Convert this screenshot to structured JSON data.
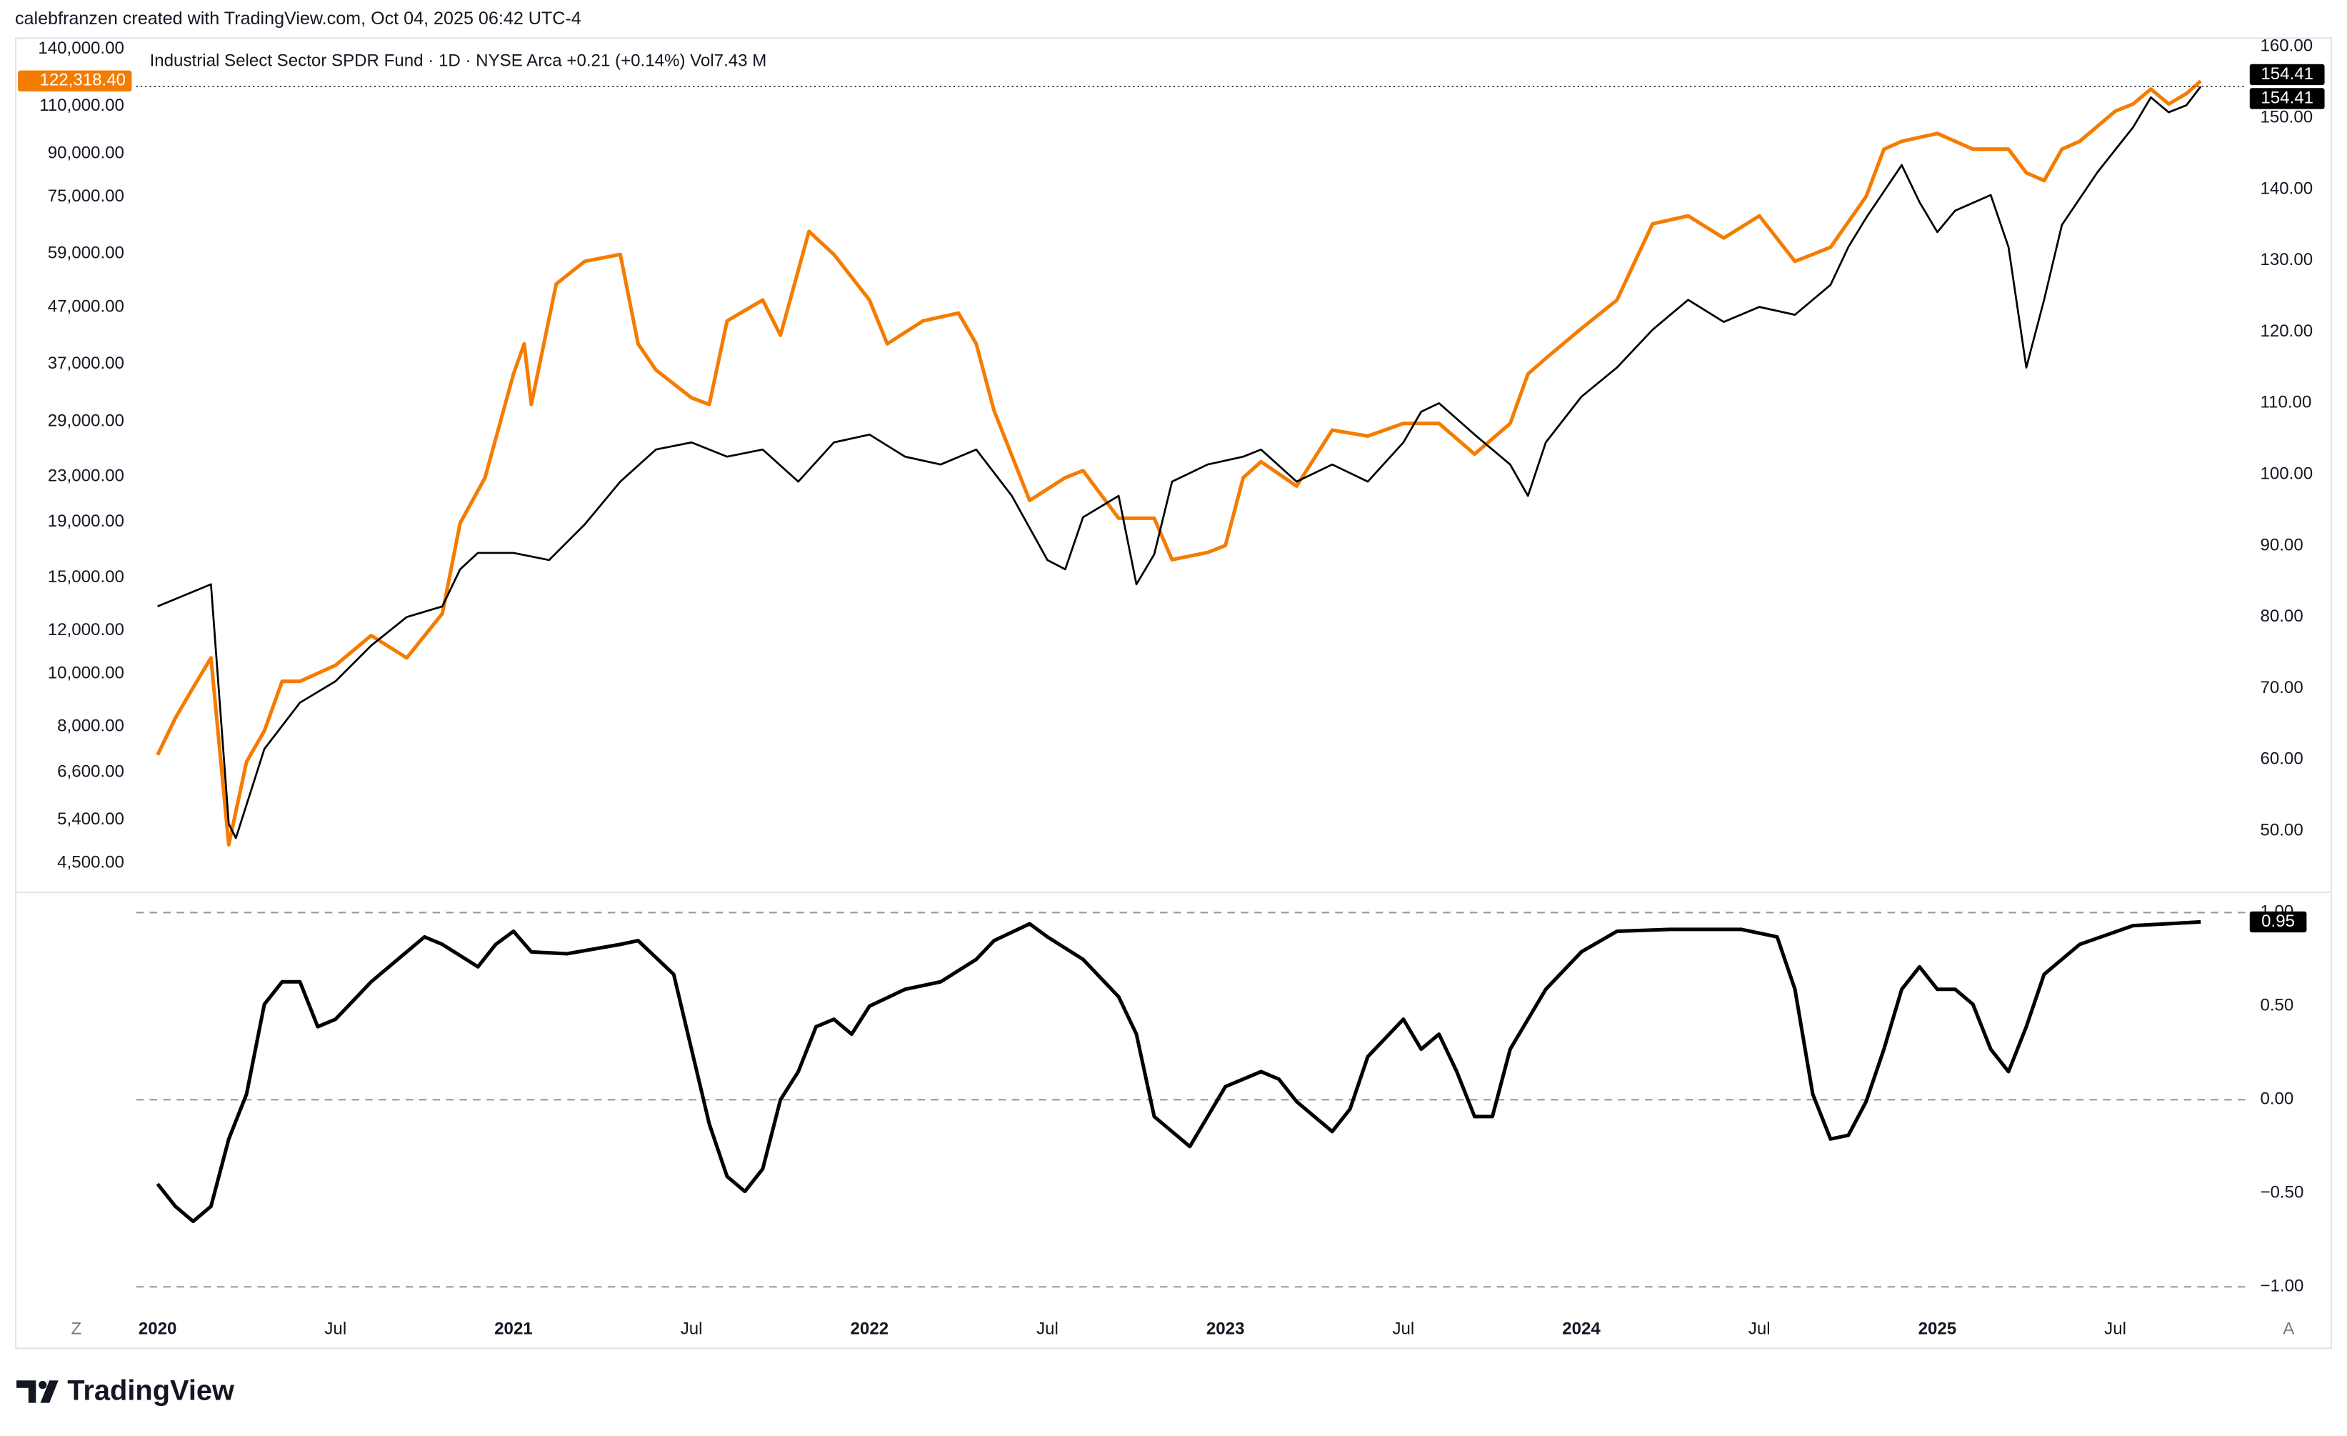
{
  "header": {
    "credit": "calebfranzen created with TradingView.com, Oct 04, 2025 06:42 UTC-4"
  },
  "footer": {
    "brand": "TradingView"
  },
  "controls": {
    "left": "Z",
    "right": "A"
  },
  "chart_data": [
    {
      "type": "line",
      "title": "Industrial Select Sector SPDR Fund · 1D · NYSE Arca  +0.21 (+0.14%)  Vol7.43 M",
      "xlim": [
        2019.94,
        2025.865
      ],
      "xticks": [
        {
          "value": 2020,
          "label": "2020"
        },
        {
          "value": 2020.5,
          "label": "Jul"
        },
        {
          "value": 2021,
          "label": "2021"
        },
        {
          "value": 2021.5,
          "label": "Jul"
        },
        {
          "value": 2022,
          "label": "2022"
        },
        {
          "value": 2022.5,
          "label": "Jul"
        },
        {
          "value": 2023,
          "label": "2023"
        },
        {
          "value": 2023.5,
          "label": "Jul"
        },
        {
          "value": 2024,
          "label": "2024"
        },
        {
          "value": 2024.5,
          "label": "Jul"
        },
        {
          "value": 2025,
          "label": "2025"
        },
        {
          "value": 2025.5,
          "label": "Jul"
        }
      ],
      "log": true,
      "ylim": [
        4000,
        147000
      ],
      "yticks": [
        {
          "value": 140000,
          "label": "140,000.00"
        },
        {
          "value": 110000,
          "label": "110,000.00"
        },
        {
          "value": 90000,
          "label": "90,000.00"
        },
        {
          "value": 75000,
          "label": "75,000.00"
        },
        {
          "value": 59000,
          "label": "59,000.00"
        },
        {
          "value": 47000,
          "label": "47,000.00"
        },
        {
          "value": 37000,
          "label": "37,000.00"
        },
        {
          "value": 29000,
          "label": "29,000.00"
        },
        {
          "value": 23000,
          "label": "23,000.00"
        },
        {
          "value": 19000,
          "label": "19,000.00"
        },
        {
          "value": 15000,
          "label": "15,000.00"
        },
        {
          "value": 12000,
          "label": "12,000.00"
        },
        {
          "value": 10000,
          "label": "10,000.00"
        },
        {
          "value": 8000,
          "label": "8,000.00"
        },
        {
          "value": 6600,
          "label": "6,600.00"
        },
        {
          "value": 5400,
          "label": "5,400.00"
        },
        {
          "value": 4500,
          "label": "4,500.00"
        }
      ],
      "y2lim": [
        41.6,
        161.3
      ],
      "y2ticks": [
        {
          "value": 160,
          "label": "160.00"
        },
        {
          "value": 150,
          "label": "150.00"
        },
        {
          "value": 140,
          "label": "140.00"
        },
        {
          "value": 130,
          "label": "130.00"
        },
        {
          "value": 120,
          "label": "120.00"
        },
        {
          "value": 110,
          "label": "110.00"
        },
        {
          "value": 100,
          "label": "100.00"
        },
        {
          "value": 90,
          "label": "90.00"
        },
        {
          "value": 80,
          "label": "80.00"
        },
        {
          "value": 70,
          "label": "70.00"
        },
        {
          "value": 60,
          "label": "60.00"
        },
        {
          "value": 50,
          "label": "50.00"
        }
      ],
      "series": [
        {
          "color": "#f57c00",
          "axis": "y",
          "last_label": "122,318.40",
          "x": [
            2020.0,
            2020.05,
            2020.1,
            2020.15,
            2020.2,
            2020.25,
            2020.3,
            2020.35,
            2020.4,
            2020.5,
            2020.6,
            2020.7,
            2020.8,
            2020.85,
            2020.92,
            2021.0,
            2021.03,
            2021.05,
            2021.12,
            2021.2,
            2021.3,
            2021.35,
            2021.4,
            2021.5,
            2021.55,
            2021.6,
            2021.7,
            2021.75,
            2021.83,
            2021.9,
            2022.0,
            2022.05,
            2022.15,
            2022.25,
            2022.3,
            2022.35,
            2022.45,
            2022.55,
            2022.6,
            2022.7,
            2022.8,
            2022.85,
            2022.95,
            2023.0,
            2023.05,
            2023.1,
            2023.2,
            2023.3,
            2023.4,
            2023.5,
            2023.6,
            2023.7,
            2023.8,
            2023.85,
            2023.9,
            2024.0,
            2024.1,
            2024.2,
            2024.3,
            2024.4,
            2024.5,
            2024.6,
            2024.7,
            2024.8,
            2024.85,
            2024.9,
            2025.0,
            2025.1,
            2025.2,
            2025.25,
            2025.3,
            2025.35,
            2025.4,
            2025.5,
            2025.55,
            2025.6,
            2025.65,
            2025.7,
            2025.74
          ],
          "values": [
            7100,
            8300,
            9440,
            10700,
            4860,
            6900,
            7860,
            9690,
            9690,
            10370,
            11760,
            10700,
            12900,
            18900,
            22900,
            35500,
            40300,
            31200,
            51900,
            57100,
            58800,
            40300,
            36100,
            32100,
            31200,
            44400,
            48500,
            41800,
            64800,
            58800,
            48500,
            40300,
            44400,
            45900,
            40300,
            30400,
            20800,
            22900,
            23600,
            19300,
            19300,
            16200,
            16700,
            17200,
            22900,
            24500,
            22100,
            28000,
            27300,
            28800,
            28800,
            25300,
            28800,
            35500,
            37900,
            43000,
            48500,
            66900,
            69200,
            63000,
            69200,
            57100,
            60600,
            75100,
            91700,
            94800,
            98000,
            91700,
            91700,
            83000,
            80300,
            91700,
            94800,
            107700,
            111000,
            118200,
            111000,
            116000,
            122318.4
          ]
        },
        {
          "color": "#000000",
          "axis": "y2",
          "x": [
            2020.0,
            2020.15,
            2020.2,
            2020.22,
            2020.3,
            2020.4,
            2020.5,
            2020.6,
            2020.7,
            2020.8,
            2020.85,
            2020.9,
            2021.0,
            2021.1,
            2021.2,
            2021.3,
            2021.4,
            2021.5,
            2021.6,
            2021.7,
            2021.8,
            2021.9,
            2022.0,
            2022.1,
            2022.2,
            2022.3,
            2022.4,
            2022.5,
            2022.55,
            2022.6,
            2022.7,
            2022.75,
            2022.8,
            2022.85,
            2022.95,
            2023.05,
            2023.1,
            2023.2,
            2023.3,
            2023.4,
            2023.5,
            2023.55,
            2023.6,
            2023.7,
            2023.8,
            2023.85,
            2023.9,
            2024.0,
            2024.1,
            2024.2,
            2024.3,
            2024.4,
            2024.5,
            2024.6,
            2024.7,
            2024.75,
            2024.8,
            2024.9,
            2024.95,
            2025.0,
            2025.05,
            2025.15,
            2025.2,
            2025.25,
            2025.3,
            2025.35,
            2025.45,
            2025.55,
            2025.6,
            2025.65,
            2025.7,
            2025.74
          ],
          "values": [
            81.5,
            84.6,
            51,
            49,
            61.5,
            68,
            71,
            76,
            80,
            81.5,
            86.7,
            89,
            89,
            88,
            93,
            99,
            103.5,
            104.5,
            102.5,
            103.5,
            99,
            104.5,
            105.6,
            102.5,
            101.4,
            103.5,
            97,
            88,
            86.7,
            94,
            97,
            84.6,
            88.8,
            99,
            101.4,
            102.5,
            103.5,
            99,
            101.4,
            99,
            104.5,
            108.8,
            110,
            105.6,
            101.4,
            97,
            104.5,
            110.9,
            115,
            120.3,
            124.5,
            121.4,
            123.5,
            122.4,
            126.6,
            131.9,
            136,
            143.4,
            138.2,
            134,
            137,
            139.2,
            131.9,
            115,
            124.5,
            135,
            142.4,
            148.7,
            152.9,
            150.8,
            151.8,
            154.41
          ]
        }
      ]
    },
    {
      "type": "line",
      "ylim": [
        -1.1,
        1.1
      ],
      "yticks": [
        {
          "value": 1,
          "label": "1.00"
        },
        {
          "value": 0.5,
          "label": "0.50"
        },
        {
          "value": 0,
          "label": "0.00"
        },
        {
          "value": -0.5,
          "label": "−0.50"
        },
        {
          "value": -1,
          "label": "−1.00"
        }
      ],
      "hlines": [
        1,
        0,
        -1
      ],
      "series": [
        {
          "color": "#000000",
          "x": [
            2020.0,
            2020.05,
            2020.1,
            2020.15,
            2020.2,
            2020.25,
            2020.3,
            2020.35,
            2020.4,
            2020.45,
            2020.5,
            2020.6,
            2020.7,
            2020.75,
            2020.8,
            2020.9,
            2020.95,
            2021.0,
            2021.05,
            2021.15,
            2021.3,
            2021.35,
            2021.45,
            2021.5,
            2021.55,
            2021.6,
            2021.65,
            2021.7,
            2021.75,
            2021.8,
            2021.85,
            2021.9,
            2021.95,
            2022.0,
            2022.1,
            2022.2,
            2022.3,
            2022.35,
            2022.45,
            2022.5,
            2022.6,
            2022.7,
            2022.75,
            2022.8,
            2022.9,
            2022.95,
            2023.0,
            2023.1,
            2023.15,
            2023.2,
            2023.3,
            2023.35,
            2023.4,
            2023.5,
            2023.55,
            2023.6,
            2023.65,
            2023.7,
            2023.75,
            2023.8,
            2023.9,
            2024.0,
            2024.1,
            2024.25,
            2024.45,
            2024.55,
            2024.6,
            2024.65,
            2024.7,
            2024.75,
            2024.8,
            2024.85,
            2024.9,
            2024.95,
            2025.0,
            2025.05,
            2025.1,
            2025.15,
            2025.2,
            2025.25,
            2025.3,
            2025.4,
            2025.55,
            2025.74
          ],
          "values": [
            -0.45,
            -0.57,
            -0.65,
            -0.57,
            -0.21,
            0.03,
            0.51,
            0.63,
            0.63,
            0.39,
            0.43,
            0.63,
            0.79,
            0.87,
            0.83,
            0.71,
            0.83,
            0.9,
            0.79,
            0.78,
            0.83,
            0.85,
            0.67,
            0.27,
            -0.13,
            -0.41,
            -0.49,
            -0.37,
            0,
            0.15,
            0.39,
            0.43,
            0.35,
            0.5,
            0.59,
            0.63,
            0.75,
            0.85,
            0.94,
            0.87,
            0.75,
            0.55,
            0.35,
            -0.09,
            -0.25,
            -0.09,
            0.07,
            0.15,
            0.11,
            -0.01,
            -0.17,
            -0.05,
            0.23,
            0.43,
            0.27,
            0.35,
            0.15,
            -0.09,
            -0.09,
            0.27,
            0.59,
            0.79,
            0.9,
            0.91,
            0.91,
            0.87,
            0.59,
            0.03,
            -0.21,
            -0.19,
            -0.01,
            0.27,
            0.59,
            0.71,
            0.59,
            0.59,
            0.51,
            0.27,
            0.15,
            0.39,
            0.67,
            0.83,
            0.93,
            0.95
          ]
        }
      ]
    }
  ]
}
